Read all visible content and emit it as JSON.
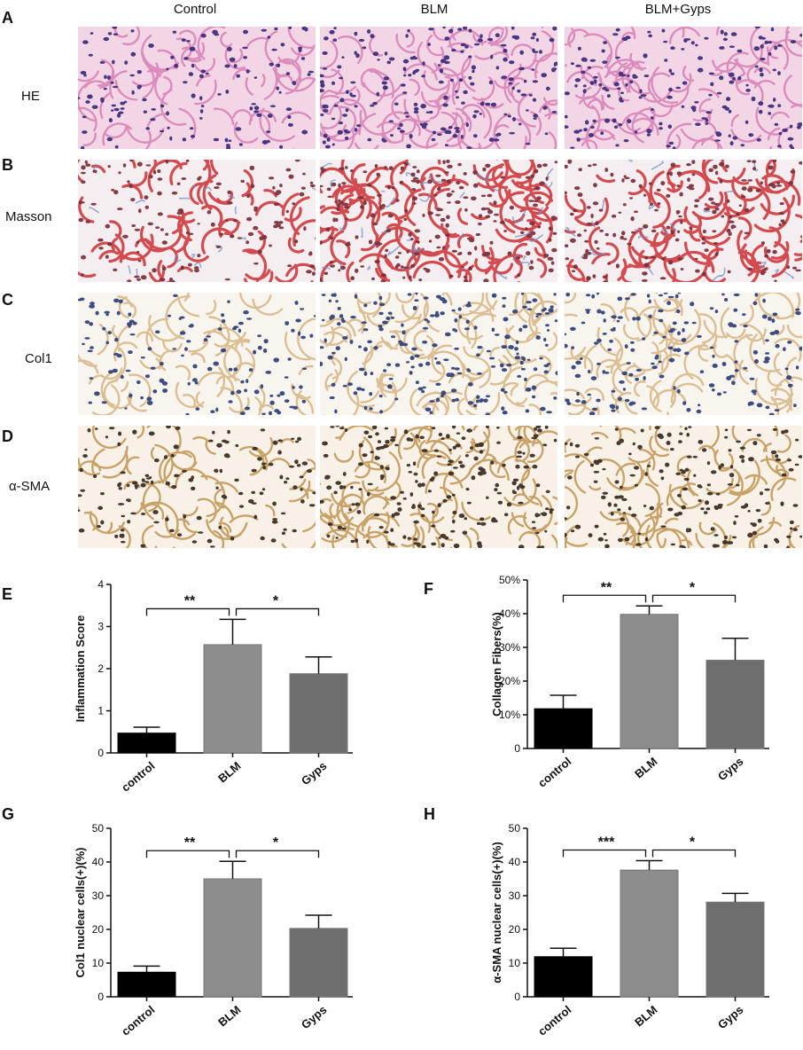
{
  "columns": [
    "Control",
    "BLM",
    "BLM+Gyps"
  ],
  "rows": [
    {
      "letter": "A",
      "stain": "HE"
    },
    {
      "letter": "B",
      "stain": "Masson"
    },
    {
      "letter": "C",
      "stain": "Col1"
    },
    {
      "letter": "D",
      "stain": "α-SMA"
    }
  ],
  "stain_colors": {
    "HE": {
      "bg": "#f3d6e6",
      "tissue": "#d985b8",
      "nuclei": "#3b2a7a"
    },
    "Masson": {
      "bg": "#f4eef0",
      "tissue": "#d0393e",
      "nuclei": "#7a2f3a",
      "fiber": "#6f8fc4"
    },
    "Col1": {
      "bg": "#f8f4ee",
      "tissue": "#d9b98a",
      "nuclei": "#2e3f78"
    },
    "α-SMA": {
      "bg": "#f7f1e8",
      "tissue": "#c49a5a",
      "nuclei": "#3a2a20"
    }
  },
  "chart_data": [
    {
      "panel": "E",
      "type": "bar",
      "categories": [
        "control",
        "BLM",
        "Gyps"
      ],
      "values": [
        0.47,
        2.57,
        1.88
      ],
      "errors": [
        0.14,
        0.6,
        0.4
      ],
      "colors": [
        "#000000",
        "#8c8c8c",
        "#6e6e6e"
      ],
      "ylabel": "Inflammation Score",
      "ylim": [
        0,
        4
      ],
      "yticks": [
        "0",
        "1",
        "2",
        "3",
        "4"
      ],
      "significance": [
        {
          "from": 0,
          "to": 1,
          "label": "**"
        },
        {
          "from": 1,
          "to": 2,
          "label": "*"
        }
      ]
    },
    {
      "panel": "F",
      "type": "bar",
      "categories": [
        "control",
        "BLM",
        "Gyps"
      ],
      "values": [
        11.8,
        39.8,
        26.2
      ],
      "errors": [
        4.0,
        2.5,
        6.5
      ],
      "colors": [
        "#000000",
        "#8c8c8c",
        "#6e6e6e"
      ],
      "ylabel": "Collagen Fibers(%)",
      "ylim": [
        0,
        50
      ],
      "yticks": [
        "0",
        "10%",
        "20%",
        "30%",
        "40%",
        "50%"
      ],
      "significance": [
        {
          "from": 0,
          "to": 1,
          "label": "**"
        },
        {
          "from": 1,
          "to": 2,
          "label": "*"
        }
      ]
    },
    {
      "panel": "G",
      "type": "bar",
      "categories": [
        "control",
        "BLM",
        "Gyps"
      ],
      "values": [
        7.3,
        35.0,
        20.3
      ],
      "errors": [
        1.8,
        5.2,
        3.9
      ],
      "colors": [
        "#000000",
        "#8c8c8c",
        "#6e6e6e"
      ],
      "ylabel": "Col1 nuclear cells(+)(%)",
      "ylim": [
        0,
        50
      ],
      "yticks": [
        "0",
        "10",
        "20",
        "30",
        "40",
        "50"
      ],
      "significance": [
        {
          "from": 0,
          "to": 1,
          "label": "**"
        },
        {
          "from": 1,
          "to": 2,
          "label": "*"
        }
      ]
    },
    {
      "panel": "H",
      "type": "bar",
      "categories": [
        "control",
        "BLM",
        "Gyps"
      ],
      "values": [
        11.9,
        37.6,
        28.1
      ],
      "errors": [
        2.5,
        2.8,
        2.6
      ],
      "colors": [
        "#000000",
        "#8c8c8c",
        "#6e6e6e"
      ],
      "ylabel": "α-SMA nuclear cells(+)(%)",
      "ylim": [
        0,
        50
      ],
      "yticks": [
        "0",
        "10",
        "20",
        "30",
        "40",
        "50"
      ],
      "significance": [
        {
          "from": 0,
          "to": 1,
          "label": "***"
        },
        {
          "from": 1,
          "to": 2,
          "label": "*"
        }
      ]
    }
  ]
}
